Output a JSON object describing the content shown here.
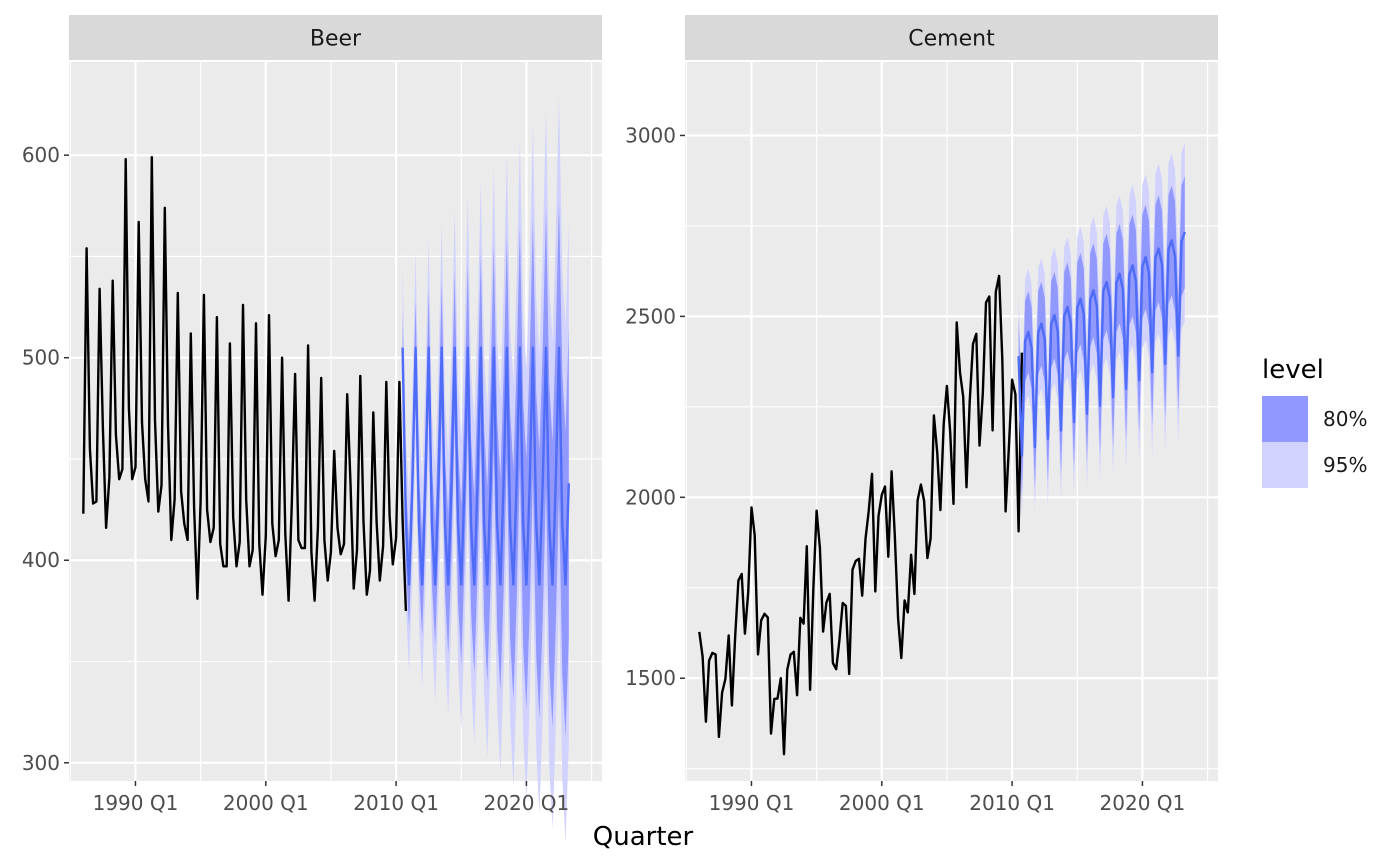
{
  "chart_data": {
    "type": "line",
    "description_of_marks": "historical series (black line), point forecast (blue line), prediction interval bands",
    "xlabel": "Quarter",
    "legend": {
      "title": "level",
      "placement": "right",
      "entries": [
        {
          "label": "80%",
          "color": "#9199ff"
        },
        {
          "label": "95%",
          "color": "#d2d2ff"
        }
      ]
    },
    "colors": {
      "panel_bg": "#ebebeb",
      "strip_bg": "#d9d9d9",
      "grid_major": "#ffffff",
      "history": "#000000",
      "forecast": "#4f6cf7",
      "level_80": "#9199ff",
      "level_95": "#d2d2ff"
    },
    "x_ticks": [
      {
        "value": 1990,
        "label": "1990 Q1"
      },
      {
        "value": 2000,
        "label": "2000 Q1"
      },
      {
        "value": 2010,
        "label": "2010 Q1"
      },
      {
        "value": 2020,
        "label": "2020 Q1"
      }
    ],
    "xlim": [
      1984.9,
      2025.8
    ],
    "panels": [
      {
        "strip": "Beer",
        "ylim": [
          291,
          646
        ],
        "y_ticks": [
          {
            "value": 300,
            "label": "300"
          },
          {
            "value": 400,
            "label": "400"
          },
          {
            "value": 500,
            "label": "500"
          },
          {
            "value": 600,
            "label": "600"
          }
        ],
        "history_start": 1986.0,
        "history": [
          423,
          554,
          455,
          428,
          429,
          534,
          465,
          416,
          441,
          538,
          462,
          440,
          445,
          598,
          475,
          440,
          446,
          567,
          468,
          440,
          429,
          599,
          469,
          424,
          437,
          574,
          467,
          410,
          430,
          532,
          434,
          418,
          410,
          512,
          426,
          381,
          429,
          531,
          425,
          409,
          416,
          520,
          408,
          397,
          397,
          507,
          421,
          397,
          409,
          526,
          430,
          397,
          405,
          517,
          408,
          383,
          412,
          521,
          418,
          402,
          410,
          500,
          413,
          380,
          428,
          492,
          410,
          406,
          406,
          506,
          404,
          380,
          416,
          490,
          410,
          390,
          404,
          454,
          416,
          403,
          408,
          482,
          438,
          386,
          405,
          491,
          419,
          383,
          395,
          473,
          419,
          390,
          407,
          488,
          422,
          398,
          411,
          488,
          420,
          375
        ],
        "forecast_start": 2010.5,
        "forecast": {
          "quarter_pattern": [
            505,
            418,
            388,
            438
          ],
          "upper_80": {
            "start": [
              524,
              437,
              407,
              457
            ],
            "growth_per_year": 4.5
          },
          "lower_80": {
            "start": [
              486,
              399,
              369,
              419
            ],
            "growth_per_year": -4.5
          },
          "upper_95": {
            "start": [
              545,
              458,
              428,
              478
            ],
            "growth_per_year": 7.0
          },
          "lower_95": {
            "start": [
              465,
              378,
              348,
              398
            ],
            "growth_per_year": -7.0
          },
          "end": 2023.25
        }
      },
      {
        "strip": "Cement",
        "ylim": [
          1216,
          3203
        ],
        "y_ticks": [
          {
            "value": 1500,
            "label": "1500"
          },
          {
            "value": 2000,
            "label": "2000"
          },
          {
            "value": 2500,
            "label": "2500"
          },
          {
            "value": 3000,
            "label": "3000"
          }
        ],
        "history_start": 1986.0,
        "history": [
          1628,
          1560,
          1380,
          1549,
          1570,
          1566,
          1338,
          1460,
          1498,
          1618,
          1425,
          1617,
          1770,
          1788,
          1623,
          1737,
          1972,
          1895,
          1566,
          1660,
          1678,
          1668,
          1347,
          1443,
          1444,
          1500,
          1290,
          1524,
          1566,
          1573,
          1453,
          1667,
          1651,
          1865,
          1468,
          1751,
          1963,
          1860,
          1629,
          1709,
          1733,
          1542,
          1525,
          1605,
          1708,
          1700,
          1512,
          1800,
          1824,
          1830,
          1728,
          1885,
          1962,
          2065,
          1740,
          1948,
          2007,
          2030,
          1836,
          2072,
          1895,
          1665,
          1556,
          1715,
          1682,
          1841,
          1733,
          1992,
          2035,
          1990,
          1832,
          1886,
          2226,
          2125,
          1965,
          2203,
          2308,
          2180,
          1982,
          2483,
          2345,
          2278,
          2028,
          2265,
          2424,
          2452,
          2143,
          2287,
          2538,
          2555,
          2185,
          2568,
          2612,
          2382,
          1961,
          2134,
          2325,
          2285,
          1906,
          2400
        ],
        "forecast_start": 2010.5,
        "forecast": {
          "quarter_pattern": [
            2390,
            2110,
            2420,
            2440
          ],
          "trend_per_year": 23,
          "band_80_halfwidth": {
            "start": 110,
            "growth_per_year": 3.5
          },
          "band_95_halfwidth": {
            "start": 170,
            "growth_per_year": 6
          },
          "end": 2023.25
        }
      }
    ]
  }
}
